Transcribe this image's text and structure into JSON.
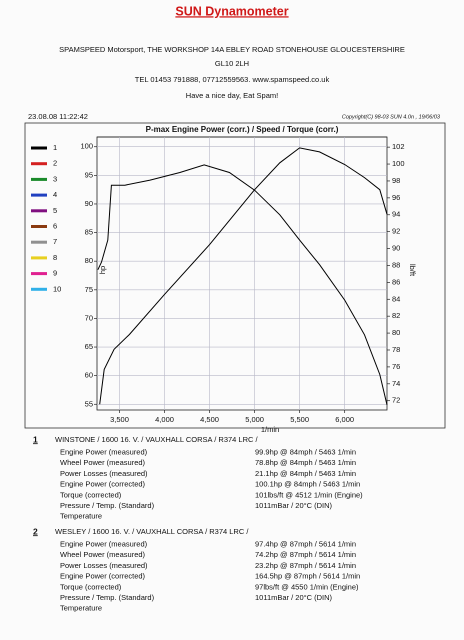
{
  "header": {
    "title": "SUN Dynamometer",
    "lines": [
      "SPAMSPEED Motorsport, THE WORKSHOP 14A EBLEY ROAD STONEHOUSE GLOUCESTERSHIRE",
      "GL10 2LH",
      "TEL 01453 791888, 07712559563. www.spamspeed.co.uk",
      "Have a nice day, Eat Spam!"
    ],
    "timestamp": "23.08.08 11:22:42",
    "copyright": "Copyright(C) 98-03 SUN 4.0n , 19/06/03"
  },
  "chart_data": {
    "type": "line",
    "title": "P-max Engine Power (corr.) / Speed / Torque (corr.)",
    "y_label": "hp",
    "y2_label": "lb/ft",
    "x_label": "1/min",
    "xlim": [
      3250,
      6470
    ],
    "xticks": [
      {
        "value": 3500,
        "label": "3,500"
      },
      {
        "value": 4000,
        "label": "4,000"
      },
      {
        "value": 4500,
        "label": "4,500"
      },
      {
        "value": 5000,
        "label": "5,000"
      },
      {
        "value": 5500,
        "label": "5,500"
      },
      {
        "value": 6000,
        "label": "6,000"
      }
    ],
    "ylim": [
      54,
      101.7
    ],
    "yticks": [
      55,
      60,
      65,
      70,
      75,
      80,
      85,
      90,
      95,
      100
    ],
    "y2lim": [
      70.9,
      103.2
    ],
    "y2ticks": [
      72,
      74,
      76,
      78,
      80,
      82,
      84,
      86,
      88,
      90,
      92,
      94,
      96,
      98,
      100,
      102
    ],
    "grid": true,
    "legend": [
      {
        "label": "1",
        "color": "#000000"
      },
      {
        "label": "2",
        "color": "#d42020"
      },
      {
        "label": "3",
        "color": "#1a8a2a"
      },
      {
        "label": "4",
        "color": "#2040c0"
      },
      {
        "label": "5",
        "color": "#801080"
      },
      {
        "label": "6",
        "color": "#8a3a10"
      },
      {
        "label": "7",
        "color": "#909090"
      },
      {
        "label": "8",
        "color": "#e8d020"
      },
      {
        "label": "9",
        "color": "#e02090"
      },
      {
        "label": "10",
        "color": "#30b0e8"
      }
    ],
    "series": [
      {
        "color": "#000000",
        "axis": "y",
        "x": [
          3280,
          3330,
          3440,
          3610,
          4000,
          4500,
          5000,
          5280,
          5500,
          5720,
          6000,
          6220,
          6390,
          6470
        ],
        "values": [
          55.0,
          61.1,
          64.6,
          67.2,
          74.2,
          82.9,
          92.5,
          97.2,
          99.8,
          99.1,
          96.9,
          94.6,
          92.5,
          88.2
        ]
      },
      {
        "color": "#000000",
        "axis": "y2",
        "x": [
          3260,
          3300,
          3370,
          3410,
          3560,
          3840,
          4170,
          4440,
          4720,
          5000,
          5280,
          5500,
          5720,
          6000,
          6220,
          6390,
          6470
        ],
        "values": [
          87.5,
          88.4,
          91.0,
          97.5,
          97.5,
          98.1,
          99.0,
          99.9,
          99.0,
          96.9,
          94.0,
          91.0,
          88.1,
          83.9,
          79.8,
          75.1,
          71.5
        ]
      }
    ]
  },
  "results": [
    {
      "index": "1",
      "title": "WINSTONE /  1600   16. V. / VAUXHALL  CORSA / R374 LRC /",
      "rows": [
        [
          "Engine Power (measured)",
          "99.9hp @ 84mph / 5463 1/min"
        ],
        [
          "Wheel Power (measured)",
          "78.8hp @ 84mph / 5463 1/min"
        ],
        [
          "Power Losses (measured)",
          "21.1hp @ 84mph / 5463 1/min"
        ],
        [
          "Engine Power (corrected)",
          "100.1hp @ 84mph / 5463 1/min"
        ],
        [
          "Torque (corrected)",
          "101lbs/ft @ 4512 1/min (Engine)"
        ],
        [
          "Pressure / Temp. (Standard)",
          "1011mBar / 20°C (DIN)"
        ],
        [
          "Temperature"
        ]
      ]
    },
    {
      "index": "2",
      "title": "WESLEY /  1600   16. V. / VAUXHALL  CORSA / R374 LRC /",
      "rows": [
        [
          "Engine Power (measured)",
          "97.4hp @ 87mph / 5614 1/min"
        ],
        [
          "Wheel Power (measured)",
          "74.2hp @ 87mph / 5614 1/min"
        ],
        [
          "Power Losses (measured)",
          "23.2hp @ 87mph / 5614 1/min"
        ],
        [
          "Engine Power (corrected)",
          "164.5hp @ 87mph / 5614 1/min"
        ],
        [
          "Torque (corrected)",
          "97lbs/ft @ 4550 1/min (Engine)"
        ],
        [
          "Pressure / Temp. (Standard)",
          "1011mBar / 20°C (DIN)"
        ],
        [
          "Temperature"
        ]
      ]
    }
  ]
}
